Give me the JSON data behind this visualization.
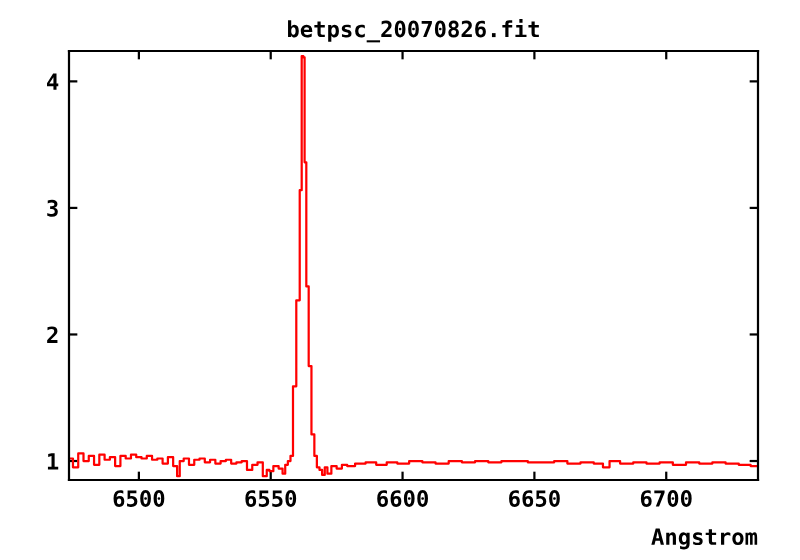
{
  "chart_data": {
    "type": "step",
    "title": "betpsc_20070826.fit",
    "xlabel": "Angstrom",
    "xlim": [
      6473.5,
      6734.8
    ],
    "ylim": [
      0.85,
      4.24
    ],
    "xticks": [
      6500,
      6550,
      6600,
      6650,
      6700
    ],
    "yticks": [
      1,
      2,
      3,
      4
    ],
    "grid": false,
    "series": [
      {
        "color": "#ff0000",
        "x": [
          6474,
          6476,
          6478,
          6480,
          6482,
          6484,
          6486,
          6488,
          6490,
          6492,
          6494,
          6496,
          6498,
          6500,
          6502,
          6504,
          6506,
          6508,
          6510,
          6512,
          6514,
          6515,
          6516,
          6518,
          6520,
          6522,
          6524,
          6526,
          6528,
          6530,
          6532,
          6534,
          6536,
          6538,
          6540,
          6542,
          6544,
          6546,
          6548,
          6549,
          6550,
          6552,
          6554,
          6555,
          6556,
          6557,
          6558,
          6558.9,
          6560.5,
          6561.5,
          6562,
          6562.7,
          6563,
          6564,
          6564.8,
          6566.1,
          6567,
          6568,
          6569,
          6570,
          6571,
          6572,
          6574,
          6576,
          6578,
          6580,
          6584,
          6588,
          6592,
          6596,
          6600,
          6605,
          6610,
          6615,
          6620,
          6625,
          6630,
          6635,
          6640,
          6645,
          6650,
          6655,
          6660,
          6665,
          6670,
          6675,
          6677,
          6680,
          6685,
          6690,
          6695,
          6700,
          6705,
          6710,
          6715,
          6720,
          6725,
          6730,
          6734
        ],
        "values": [
          1.02,
          0.95,
          1.06,
          1.0,
          1.04,
          0.97,
          1.05,
          1.01,
          1.03,
          0.96,
          1.04,
          1.02,
          1.05,
          1.03,
          1.02,
          1.04,
          1.01,
          1.02,
          0.98,
          1.03,
          0.96,
          0.88,
          1.0,
          1.02,
          0.97,
          1.01,
          1.02,
          0.99,
          1.01,
          0.98,
          1.0,
          1.01,
          0.98,
          0.99,
          1.0,
          0.93,
          0.97,
          0.99,
          0.88,
          0.93,
          0.92,
          0.96,
          0.94,
          0.9,
          0.97,
          1.0,
          1.04,
          1.59,
          2.27,
          3.14,
          4.2,
          4.19,
          3.36,
          2.38,
          1.75,
          1.21,
          1.04,
          0.95,
          0.93,
          0.89,
          0.95,
          0.9,
          0.96,
          0.94,
          0.97,
          0.96,
          0.98,
          0.99,
          0.97,
          0.99,
          0.98,
          1.0,
          0.99,
          0.98,
          1.0,
          0.99,
          1.0,
          0.99,
          1.0,
          1.0,
          0.99,
          0.99,
          1.0,
          0.98,
          0.99,
          0.98,
          0.95,
          1.0,
          0.98,
          0.99,
          0.98,
          0.99,
          0.97,
          0.99,
          0.98,
          0.99,
          0.98,
          0.97,
          0.96
        ]
      }
    ]
  }
}
